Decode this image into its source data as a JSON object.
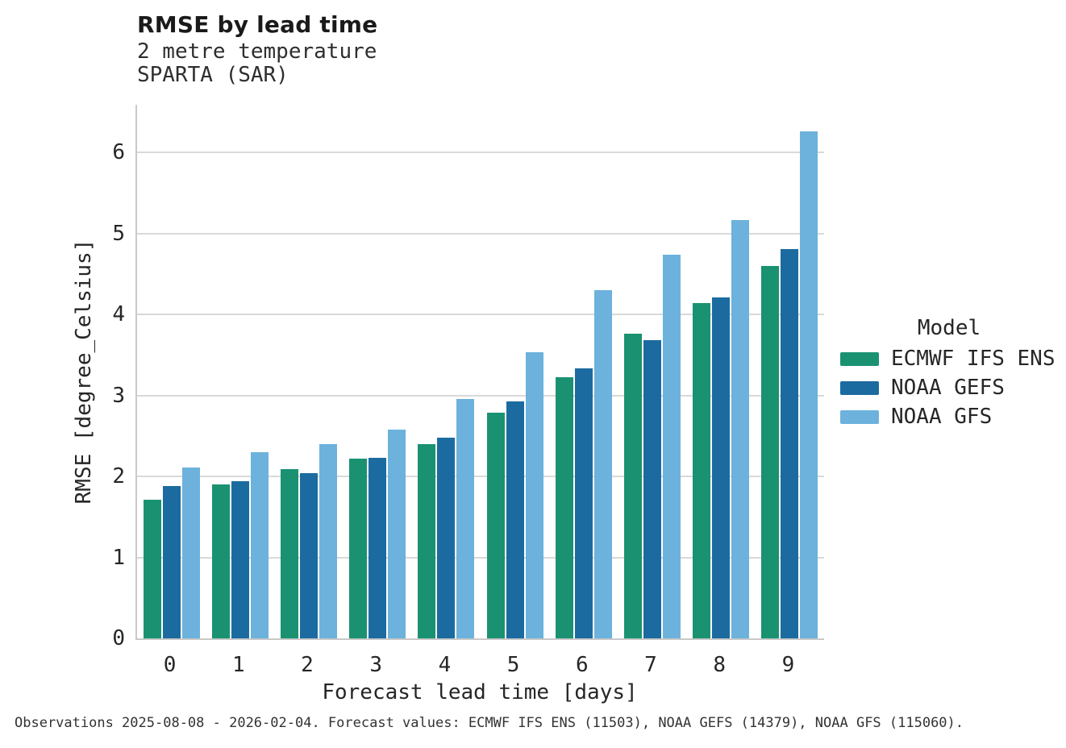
{
  "header": {
    "title": "RMSE by lead time",
    "subtitle_line1": "2 metre temperature",
    "subtitle_line2": "SPARTA (SAR)"
  },
  "legend": {
    "title": "Model"
  },
  "footnote": "Observations 2025-08-08 - 2026-02-04. Forecast values: ECMWF IFS ENS (11503), NOAA GEFS (14379), NOAA GFS (115060).",
  "colors": {
    "grid": "#d9d9d9",
    "spine": "#c9c9c9",
    "text": "#262626",
    "ecmwf_green": "#1a9271",
    "gefs_blue": "#1c6ba0",
    "gfs_lightblue": "#6cb2dc"
  },
  "chart_data": {
    "type": "bar",
    "title": "RMSE by lead time",
    "subtitle": [
      "2 metre temperature",
      "SPARTA (SAR)"
    ],
    "xlabel": "Forecast lead time [days]",
    "ylabel": "RMSE [degree_Celsius]",
    "categories": [
      "0",
      "1",
      "2",
      "3",
      "4",
      "5",
      "6",
      "7",
      "8",
      "9"
    ],
    "series": [
      {
        "name": "ECMWF IFS ENS",
        "color": "#1a9271",
        "values": [
          1.71,
          1.9,
          2.09,
          2.22,
          2.4,
          2.79,
          3.23,
          3.76,
          4.14,
          4.6
        ]
      },
      {
        "name": "NOAA GEFS",
        "color": "#1c6ba0",
        "values": [
          1.88,
          1.94,
          2.04,
          2.23,
          2.48,
          2.93,
          3.33,
          3.68,
          4.21,
          4.81
        ]
      },
      {
        "name": "NOAA GFS",
        "color": "#6cb2dc",
        "values": [
          2.11,
          2.3,
          2.4,
          2.58,
          2.96,
          3.53,
          4.3,
          4.74,
          5.17,
          6.26
        ]
      }
    ],
    "ylim": [
      0,
      6.59
    ],
    "yticks": [
      0,
      1,
      2,
      3,
      4,
      5,
      6
    ],
    "grid": "horizontal",
    "legend_position": "right",
    "legend_title": "Model"
  }
}
